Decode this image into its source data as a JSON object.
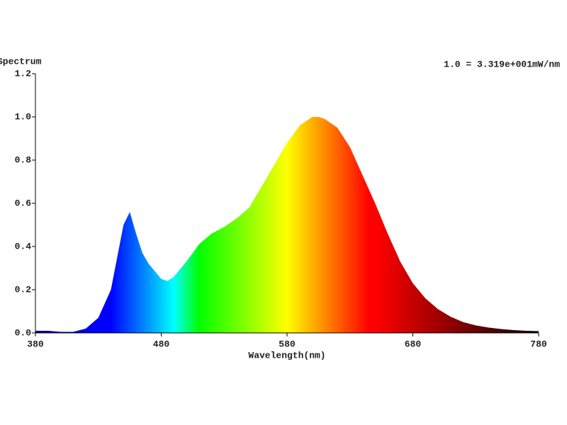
{
  "chart_data": {
    "type": "area",
    "title": "Spectrum",
    "annotation": "1.0 = 3.319e+001mW/nm",
    "xlabel": "Wavelength(nm)",
    "x": [
      380,
      390,
      400,
      410,
      420,
      430,
      440,
      450,
      455,
      460,
      465,
      470,
      480,
      485,
      490,
      500,
      510,
      520,
      530,
      540,
      550,
      560,
      570,
      580,
      590,
      600,
      605,
      610,
      620,
      630,
      640,
      650,
      660,
      670,
      680,
      690,
      700,
      710,
      720,
      730,
      740,
      750,
      760,
      770,
      780
    ],
    "values": [
      0.01,
      0.01,
      0.005,
      0.005,
      0.02,
      0.07,
      0.2,
      0.5,
      0.56,
      0.46,
      0.37,
      0.32,
      0.25,
      0.24,
      0.26,
      0.33,
      0.41,
      0.46,
      0.49,
      0.53,
      0.58,
      0.68,
      0.78,
      0.88,
      0.96,
      1.0,
      1.0,
      0.99,
      0.95,
      0.86,
      0.73,
      0.6,
      0.46,
      0.33,
      0.23,
      0.16,
      0.11,
      0.075,
      0.05,
      0.035,
      0.025,
      0.018,
      0.013,
      0.01,
      0.008
    ],
    "fill": "spectral",
    "xlim": [
      380,
      780
    ],
    "xticks": [
      380,
      480,
      580,
      680,
      780
    ],
    "ylim": [
      0,
      1.2
    ],
    "yticks": [
      {
        "value": 0,
        "label": "0.0"
      },
      0.2,
      0.4,
      0.6,
      0.8,
      {
        "value": 1,
        "label": "1.0"
      },
      {
        "value": 1.2,
        "label": "1.2"
      }
    ],
    "grid": false
  }
}
